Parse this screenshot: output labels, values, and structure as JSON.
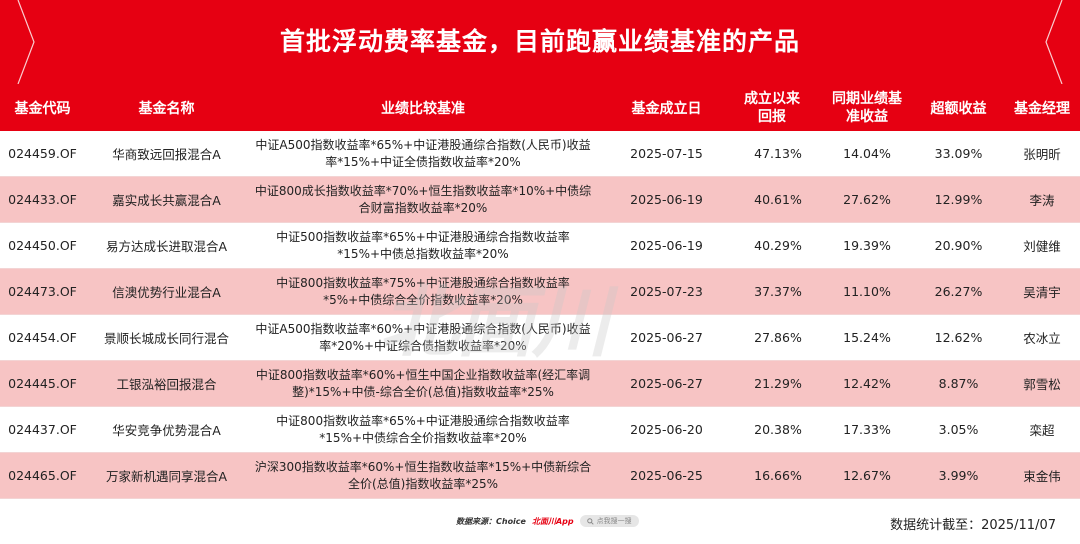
{
  "title": "首批浮动费率基金，目前跑赢业绩基准的产品",
  "colors": {
    "accent": "#e60012",
    "alt_row": "#f7c4c4"
  },
  "columns": [
    "基金代码",
    "基金名称",
    "业绩比较基准",
    "基金成立日",
    "成立以来回报",
    "同期业绩基准收益",
    "超额收益",
    "基金经理"
  ],
  "rows": [
    {
      "code": "024459.OF",
      "name": "华商致远回报混合A",
      "benchmark": "中证A500指数收益率*65%+中证港股通综合指数(人民币)收益率*15%+中证全债指数收益率*20%",
      "date": "2025-07-15",
      "ret": "47.13%",
      "bench_ret": "14.04%",
      "excess": "33.09%",
      "manager": "张明昕"
    },
    {
      "code": "024433.OF",
      "name": "嘉实成长共赢混合A",
      "benchmark": "中证800成长指数收益率*70%+恒生指数收益率*10%+中债综合财富指数收益率*20%",
      "date": "2025-06-19",
      "ret": "40.61%",
      "bench_ret": "27.62%",
      "excess": "12.99%",
      "manager": "李涛"
    },
    {
      "code": "024450.OF",
      "name": "易方达成长进取混合A",
      "benchmark": "中证500指数收益率*65%+中证港股通综合指数收益率*15%+中债总指数收益率*20%",
      "date": "2025-06-19",
      "ret": "40.29%",
      "bench_ret": "19.39%",
      "excess": "20.90%",
      "manager": "刘健维"
    },
    {
      "code": "024473.OF",
      "name": "信澳优势行业混合A",
      "benchmark": "中证800指数收益率*75%+中证港股通综合指数收益率*5%+中债综合全价指数收益率*20%",
      "date": "2025-07-23",
      "ret": "37.37%",
      "bench_ret": "11.10%",
      "excess": "26.27%",
      "manager": "吴清宇"
    },
    {
      "code": "024454.OF",
      "name": "景顺长城成长同行混合",
      "benchmark": "中证A500指数收益率*60%+中证港股通综合指数(人民币)收益率*20%+中证综合债指数收益率*20%",
      "date": "2025-06-27",
      "ret": "27.86%",
      "bench_ret": "15.24%",
      "excess": "12.62%",
      "manager": "农冰立"
    },
    {
      "code": "024445.OF",
      "name": "工银泓裕回报混合",
      "benchmark": "中证800指数收益率*60%+恒生中国企业指数收益率(经汇率调整)*15%+中债-综合全价(总值)指数收益率*25%",
      "date": "2025-06-27",
      "ret": "21.29%",
      "bench_ret": "12.42%",
      "excess": "8.87%",
      "manager": "郭雪松"
    },
    {
      "code": "024437.OF",
      "name": "华安竞争优势混合A",
      "benchmark": "中证800指数收益率*65%+中证港股通综合指数收益率*15%+中债综合全价指数收益率*20%",
      "date": "2025-06-20",
      "ret": "20.38%",
      "bench_ret": "17.33%",
      "excess": "3.05%",
      "manager": "栾超"
    },
    {
      "code": "024465.OF",
      "name": "万家新机遇同享混合A",
      "benchmark": "沪深300指数收益率*60%+恒生指数收益率*15%+中债新综合全价(总值)指数收益率*25%",
      "date": "2025-06-25",
      "ret": "16.66%",
      "bench_ret": "12.67%",
      "excess": "3.99%",
      "manager": "束金伟"
    }
  ],
  "footer": {
    "source_label": "数据来源：Choice",
    "brand": "北面川App",
    "search_placeholder": "点我搜一搜",
    "date_note": "数据统计截至：2025/11/07"
  },
  "watermark": "北面川"
}
